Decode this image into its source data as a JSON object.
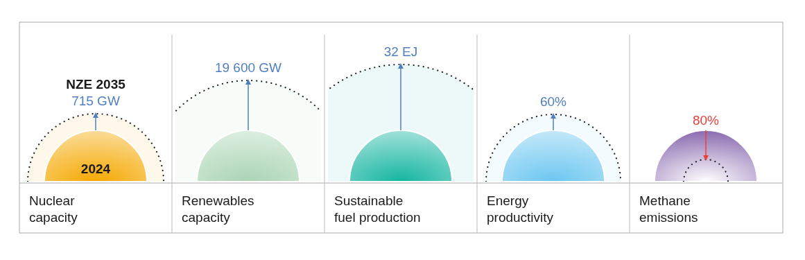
{
  "chart_data": {
    "type": "other",
    "categories": [
      "Nuclear\ncapacity",
      "Renewables\ncapacity",
      "Sustainable\nfuel production",
      "Energy\nproductivity",
      "Methane\nemissions"
    ],
    "colors": [
      "#f5a800",
      "#a9d4b3",
      "#14b5a0",
      "#6cc6f0",
      "#8a6bb0"
    ],
    "series": [
      {
        "color": "#4f7fc0",
        "values": [
          715,
          19600,
          32,
          60,
          null
        ],
        "value_labels": [
          "715 GW",
          "19 600 GW",
          "32 EJ",
          "60%",
          null
        ]
      },
      {
        "color": "#e8403a",
        "values": [
          null,
          null,
          null,
          null,
          80
        ],
        "value_labels": [
          null,
          null,
          null,
          null,
          "80%"
        ]
      }
    ],
    "annotations": [
      "NZE 2035",
      "2024"
    ]
  }
}
